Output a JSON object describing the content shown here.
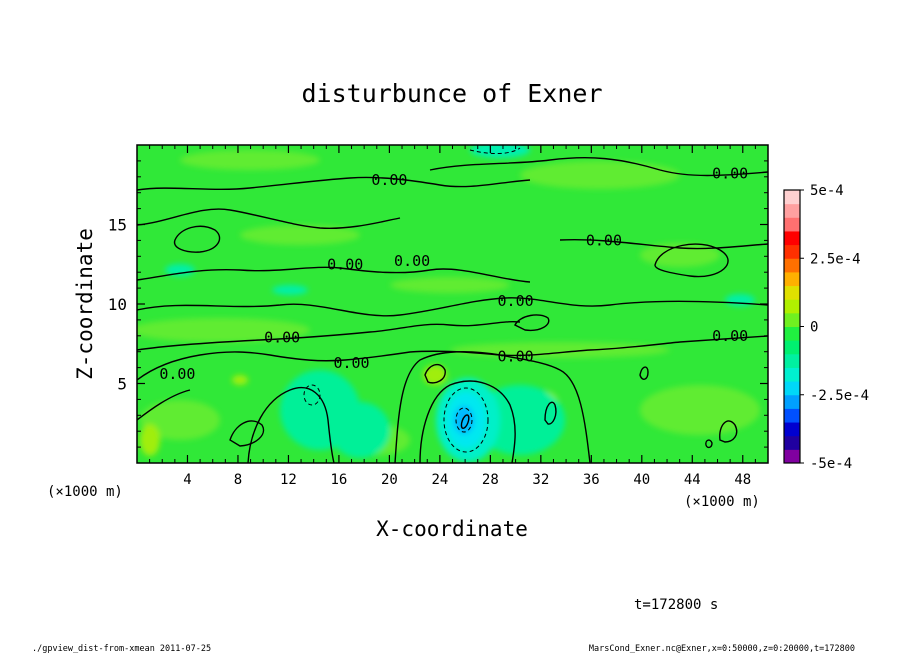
{
  "chart_data": {
    "type": "heatmap",
    "title": "disturbunce of Exner",
    "xlabel": "X-coordinate",
    "ylabel": "Z-coordinate",
    "x_unit_left": "(×1000 m)",
    "x_unit_right": "(×1000 m)",
    "xlim": [
      0,
      50
    ],
    "ylim": [
      0,
      20
    ],
    "x_ticks": [
      4,
      8,
      12,
      16,
      20,
      24,
      28,
      32,
      36,
      40,
      44,
      48
    ],
    "y_ticks": [
      5,
      10,
      15
    ],
    "colorbar": {
      "min": -0.0005,
      "max": 0.0005,
      "labels": [
        {
          "v": 0.0005,
          "text": "5e-4"
        },
        {
          "v": 0.00025,
          "text": "2.5e-4"
        },
        {
          "v": 0,
          "text": "0"
        },
        {
          "v": -0.00025,
          "text": "-2.5e-4"
        },
        {
          "v": -0.0005,
          "text": "-5e-4"
        }
      ],
      "colors": [
        "#8000a0",
        "#2000a0",
        "#0000d0",
        "#0050ff",
        "#00a0ff",
        "#00d8f8",
        "#00f0d0",
        "#00f0a0",
        "#00f070",
        "#20f040",
        "#70f020",
        "#b0f000",
        "#e0e000",
        "#ffb000",
        "#ff7000",
        "#ff3000",
        "#ff0000",
        "#ff7070",
        "#ffa0a0",
        "#ffd0d0"
      ]
    },
    "contour_labels": [
      {
        "x": 20.0,
        "z": 17.8,
        "text": "0.00"
      },
      {
        "x": 47.0,
        "z": 18.2,
        "text": "0.00"
      },
      {
        "x": 37.0,
        "z": 14.0,
        "text": "0.00"
      },
      {
        "x": 16.5,
        "z": 12.5,
        "text": "0.00"
      },
      {
        "x": 21.8,
        "z": 12.7,
        "text": "0.00"
      },
      {
        "x": 30.0,
        "z": 10.2,
        "text": "0.00"
      },
      {
        "x": 11.5,
        "z": 7.9,
        "text": "0.00"
      },
      {
        "x": 47.0,
        "z": 8.0,
        "text": "0.00"
      },
      {
        "x": 17.0,
        "z": 6.3,
        "text": "0.00"
      },
      {
        "x": 30.0,
        "z": 6.7,
        "text": "0.00"
      },
      {
        "x": 3.2,
        "z": 5.6,
        "text": "0.00"
      }
    ],
    "negative_core": {
      "x": 26.0,
      "z": 2.6,
      "value_sign": "negative"
    },
    "time_label": "t=172800 s",
    "footer_left": "./gpview_dist-from-xmean  2011-07-25",
    "footer_right": "MarsCond_Exner.nc@Exner,x=0:50000,z=0:20000,t=172800"
  }
}
